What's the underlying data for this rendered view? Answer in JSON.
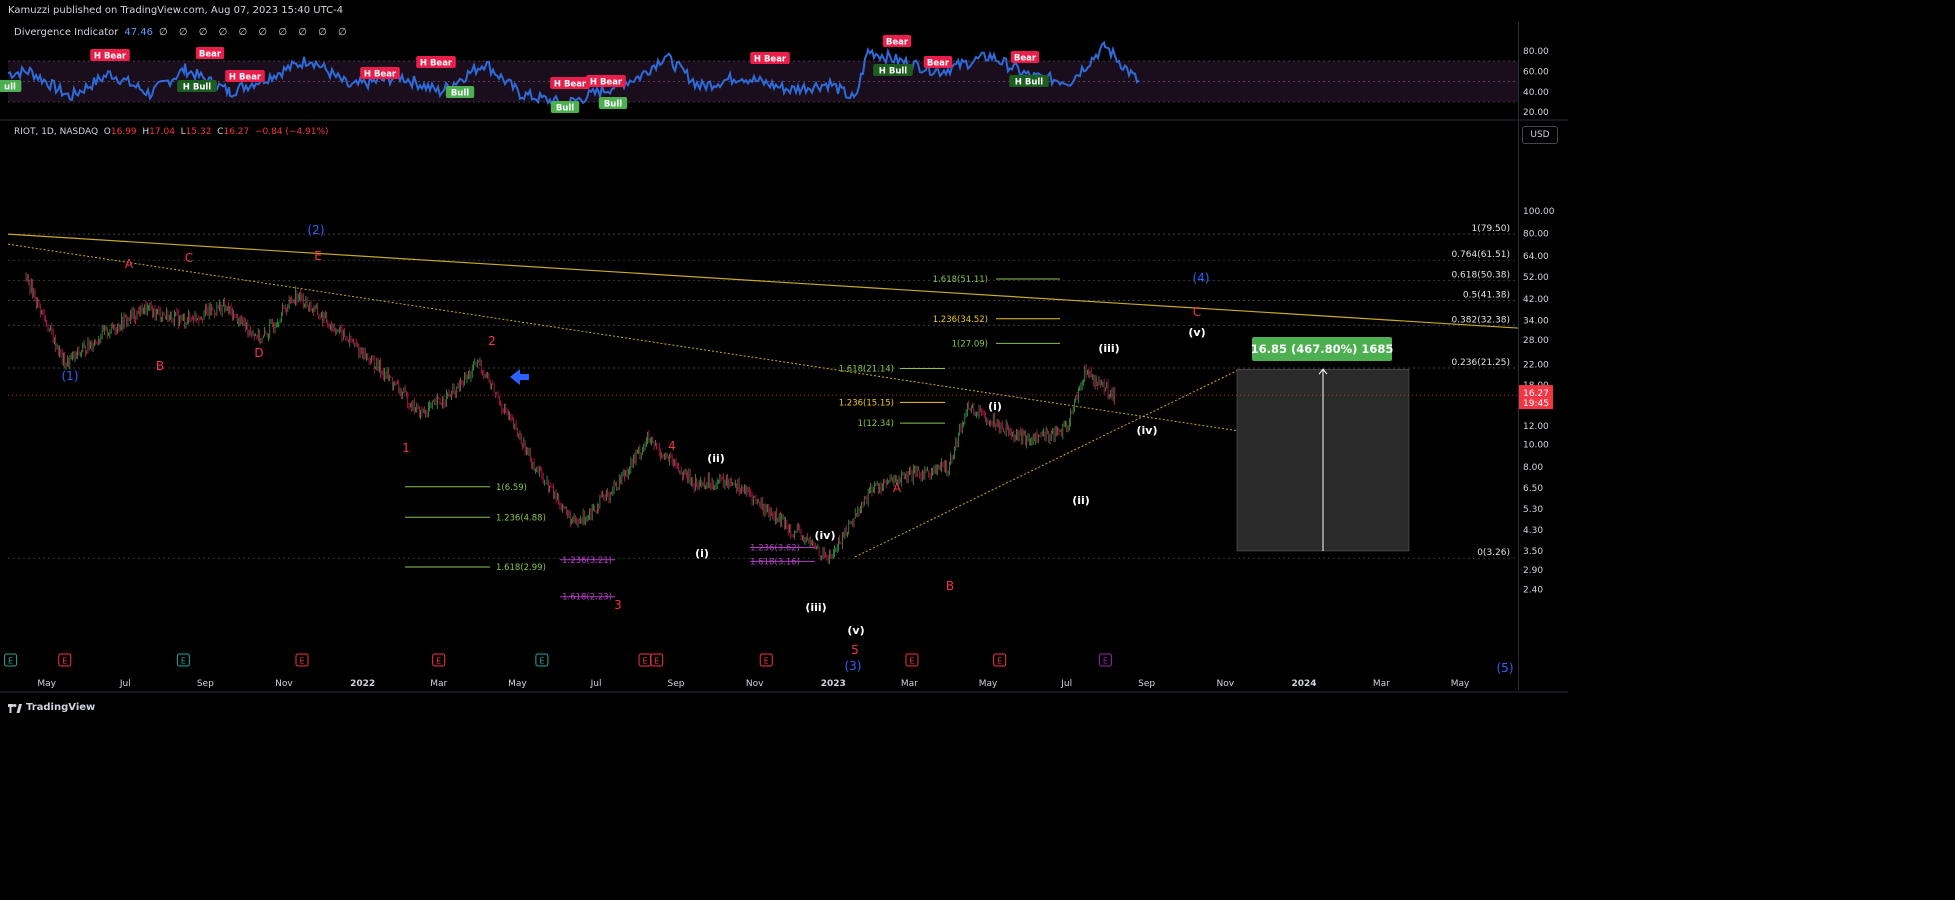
{
  "header": {
    "published": "Kamuzzi published on TradingView.com, Aug 07, 2023 15:40 UTC-4"
  },
  "indicator": {
    "title": "Divergence Indicator",
    "value": "47.46",
    "zeros": "∅ ∅ ∅ ∅ ∅ ∅ ∅ ∅ ∅ ∅",
    "axis_labels": [
      "80.00",
      "60.00",
      "40.00",
      "20.00"
    ],
    "line_color": "#2f6bd8",
    "labels": [
      {
        "text": "ull",
        "kind": "bull"
      },
      {
        "text": "H Bear",
        "kind": "bear"
      },
      {
        "text": "Bear",
        "kind": "bear"
      },
      {
        "text": "H Bull",
        "kind": "hbull"
      },
      {
        "text": "H Bear",
        "kind": "bear"
      },
      {
        "text": "H Bear",
        "kind": "bear"
      },
      {
        "text": "H Bear",
        "kind": "bear"
      },
      {
        "text": "Bull",
        "kind": "bull"
      },
      {
        "text": "H Bear",
        "kind": "bear"
      },
      {
        "text": "Bull",
        "kind": "bull"
      },
      {
        "text": "H Bear",
        "kind": "bear"
      },
      {
        "text": "Bull",
        "kind": "bull"
      },
      {
        "text": "H Bear",
        "kind": "bear"
      },
      {
        "text": "Bear",
        "kind": "bear"
      },
      {
        "text": "H Bull",
        "kind": "hbull"
      },
      {
        "text": "Bear",
        "kind": "bear"
      },
      {
        "text": "Bear",
        "kind": "bear"
      },
      {
        "text": "H Bull",
        "kind": "hbull"
      }
    ]
  },
  "symbol": {
    "name": "RIOT, 1D, NASDAQ",
    "o_label": "O",
    "o": "16.99",
    "h_label": "H",
    "h": "17.04",
    "l_label": "L",
    "l": "15.32",
    "c_label": "C",
    "c": "16.27",
    "change": "−0.84 (−4.91%)"
  },
  "currency": "USD",
  "price_axis": [
    "100.00",
    "80.00",
    "64.00",
    "52.00",
    "42.00",
    "34.00",
    "28.00",
    "22.00",
    "18.00",
    "12.00",
    "10.00",
    "8.00",
    "6.50",
    "5.30",
    "4.30",
    "3.50",
    "2.90",
    "2.40"
  ],
  "time_axis": [
    "May",
    "Jul",
    "Sep",
    "Nov",
    "2022",
    "Mar",
    "May",
    "Jul",
    "Sep",
    "Nov",
    "2023",
    "Mar",
    "May",
    "Jul",
    "Sep",
    "Nov",
    "2024",
    "Mar",
    "May"
  ],
  "current_price": {
    "price": "16.27",
    "countdown": "19:45",
    "color": "#f23645"
  },
  "measure_box": {
    "label": "16.85 (467.80%) 1685",
    "color": "#4caf50"
  },
  "fib_retracement": [
    {
      "label": "1(79.50)"
    },
    {
      "label": "0.764(61.51)"
    },
    {
      "label": "0.618(50.38)"
    },
    {
      "label": "0.5(41.38)"
    },
    {
      "label": "0.382(32.38)"
    },
    {
      "label": "0.236(21.25)"
    },
    {
      "label": "0(3.26)"
    }
  ],
  "fib_extensions": [
    {
      "label": "1.618(51.11)",
      "color": "#8bc34a"
    },
    {
      "label": "1.236(34.52)",
      "color": "#f0c419"
    },
    {
      "label": "1(27.09)",
      "color": "#8bc34a"
    },
    {
      "label": "1.618(21.14)",
      "color": "#8bc34a"
    },
    {
      "label": "1.236(15.15)",
      "color": "#f0c419"
    },
    {
      "label": "1(12.34)",
      "color": "#8bc34a"
    },
    {
      "label": "1(6.59)",
      "color": "#8bc34a"
    },
    {
      "label": "1.236(4.88)",
      "color": "#8bc34a"
    },
    {
      "label": "1.618(2.99)",
      "color": "#8bc34a"
    },
    {
      "label": "1.236(3.21)",
      "color": "#b040c0"
    },
    {
      "label": "1.236(3.62)",
      "color": "#b040c0"
    },
    {
      "label": "1.618(3.16)",
      "color": "#b040c0"
    },
    {
      "label": "1.618(2.23)",
      "color": "#b040c0"
    }
  ],
  "wave_labels": [
    {
      "text": "(1)",
      "color": "#2962ff"
    },
    {
      "text": "(2)",
      "color": "#2962ff"
    },
    {
      "text": "(3)",
      "color": "#2962ff"
    },
    {
      "text": "(4)",
      "color": "#2962ff"
    },
    {
      "text": "(5)",
      "color": "#2962ff"
    },
    {
      "text": "A",
      "color": "#f23645"
    },
    {
      "text": "B",
      "color": "#f23645"
    },
    {
      "text": "C",
      "color": "#f23645"
    },
    {
      "text": "D",
      "color": "#f23645"
    },
    {
      "text": "E",
      "color": "#f23645"
    },
    {
      "text": "1",
      "color": "#f23645"
    },
    {
      "text": "2",
      "color": "#f23645"
    },
    {
      "text": "3",
      "color": "#f23645"
    },
    {
      "text": "4",
      "color": "#f23645"
    },
    {
      "text": "5",
      "color": "#f23645"
    },
    {
      "text": "A",
      "color": "#f23645"
    },
    {
      "text": "B",
      "color": "#f23645"
    },
    {
      "text": "C",
      "color": "#f23645"
    },
    {
      "text": "(i)",
      "color": "#ffffff"
    },
    {
      "text": "(ii)",
      "color": "#ffffff"
    },
    {
      "text": "(iii)",
      "color": "#ffffff"
    },
    {
      "text": "(iv)",
      "color": "#ffffff"
    },
    {
      "text": "(v)",
      "color": "#ffffff"
    },
    {
      "text": "(i)",
      "color": "#ffffff"
    },
    {
      "text": "(ii)",
      "color": "#ffffff"
    },
    {
      "text": "(iii)",
      "color": "#ffffff"
    },
    {
      "text": "(iv)",
      "color": "#ffffff"
    },
    {
      "text": "(v)",
      "color": "#ffffff"
    }
  ],
  "earnings_marker": "E",
  "footer": {
    "brand": "TradingView"
  },
  "chart_data": {
    "type": "candlestick",
    "symbol": "RIOT",
    "interval": "1D",
    "y_scale": "log",
    "ylim": [
      2.3,
      120
    ],
    "series": [
      {
        "name": "RIOT",
        "x": [
          "2021-04-15",
          "2021-05-15",
          "2021-06-15",
          "2021-07-15",
          "2021-08-15",
          "2021-09-15",
          "2021-10-15",
          "2021-11-10",
          "2021-12-15",
          "2022-01-15",
          "2022-02-15",
          "2022-03-15",
          "2022-04-01",
          "2022-05-15",
          "2022-06-15",
          "2022-07-15",
          "2022-08-10",
          "2022-09-15",
          "2022-10-15",
          "2022-11-15",
          "2022-12-29",
          "2023-01-31",
          "2023-02-28",
          "2023-03-31",
          "2023-04-15",
          "2023-05-31",
          "2023-06-30",
          "2023-07-15",
          "2023-08-07"
        ],
        "close": [
          52.0,
          22.0,
          30.0,
          38.0,
          34.0,
          39.0,
          28.0,
          44.0,
          30.0,
          21.0,
          13.5,
          17.0,
          22.5,
          8.0,
          4.5,
          6.5,
          10.5,
          6.8,
          7.0,
          5.0,
          3.26,
          6.5,
          7.3,
          8.0,
          14.5,
          10.5,
          11.5,
          20.5,
          16.27
        ]
      }
    ]
  }
}
